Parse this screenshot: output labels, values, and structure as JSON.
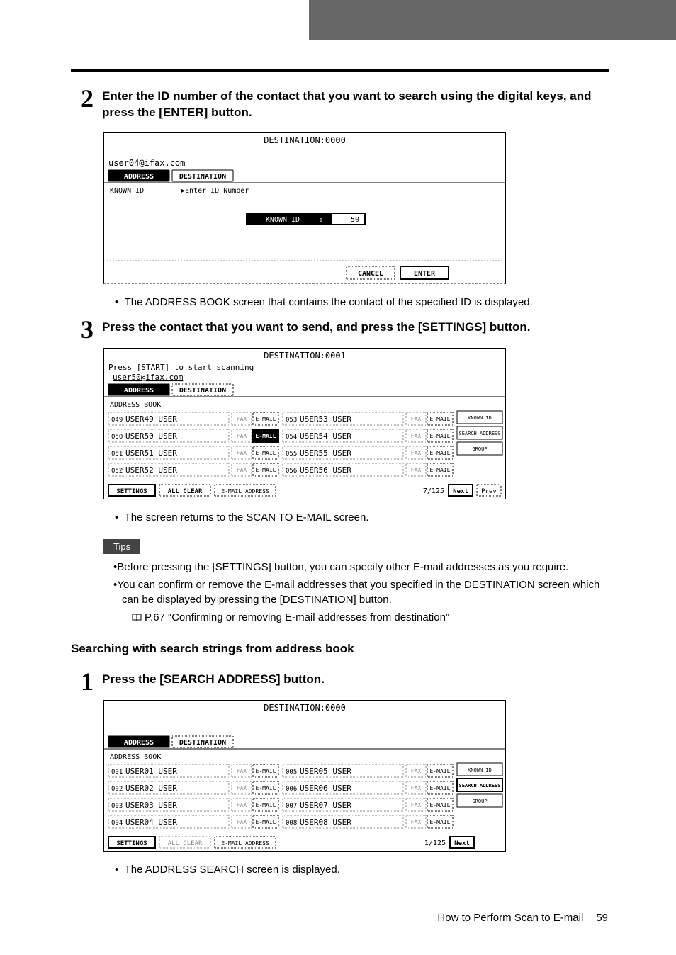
{
  "step2": {
    "title": "Enter the ID number of the contact that you want to search using the digital keys, and press the [ENTER] button.",
    "bullet": "The ADDRESS BOOK screen that contains the contact of the specified ID is displayed.",
    "screen": {
      "header": "DESTINATION:0000",
      "email": "user04@ifax.com",
      "tab_address": "ADDRESS",
      "tab_destination": "DESTINATION",
      "known_id_label": "KNOWN ID",
      "enter_hint": "▶Enter ID Number",
      "dialog_label": "KNOWN ID",
      "dialog_value": "50",
      "cancel": "CANCEL",
      "enter": "ENTER"
    }
  },
  "step3": {
    "title": "Press the contact that you want to send, and press the [SETTINGS] button.",
    "bullet": "The screen returns to the SCAN TO E-MAIL screen.",
    "screen": {
      "header": "DESTINATION:0001",
      "start_line": "Press [START] to start scanning",
      "email": "user50@ifax.com",
      "tab_address": "ADDRESS",
      "tab_destination": "DESTINATION",
      "book_label": "ADDRESS BOOK",
      "left_rows": [
        {
          "id": "049",
          "name": "USER49 USER",
          "hi": false
        },
        {
          "id": "050",
          "name": "USER50 USER",
          "hi": true
        },
        {
          "id": "051",
          "name": "USER51 USER",
          "hi": false
        },
        {
          "id": "052",
          "name": "USER52 USER",
          "hi": false
        }
      ],
      "right_rows": [
        {
          "id": "053",
          "name": "USER53 USER"
        },
        {
          "id": "054",
          "name": "USER54 USER"
        },
        {
          "id": "055",
          "name": "USER55 USER"
        },
        {
          "id": "056",
          "name": "USER56 USER"
        }
      ],
      "side_buttons": [
        "KNOWN ID",
        "SEARCH ADDRESS",
        "GROUP"
      ],
      "settings": "SETTINGS",
      "all_clear": "ALL CLEAR",
      "email_addr": "E-MAIL ADDRESS",
      "page": "7/125",
      "next": "Next",
      "prev": "Prev",
      "fax": "FAX",
      "emailb": "E-MAIL"
    }
  },
  "tips": {
    "label": "Tips",
    "items": [
      "Before pressing the [SETTINGS] button, you can specify other E-mail addresses as you require.",
      "You can confirm or remove the E-mail addresses that you specified in the DESTINATION screen which can be displayed by pressing the [DESTINATION] button."
    ],
    "ref": "P.67 “Confirming or removing E-mail addresses from destination”"
  },
  "sub_heading": "Searching with search strings from address book",
  "step1b": {
    "title": "Press the [SEARCH ADDRESS] button.",
    "bullet": "The ADDRESS SEARCH screen is displayed.",
    "screen": {
      "header": "DESTINATION:0000",
      "tab_address": "ADDRESS",
      "tab_destination": "DESTINATION",
      "book_label": "ADDRESS BOOK",
      "left_rows": [
        {
          "id": "001",
          "name": "USER01 USER"
        },
        {
          "id": "002",
          "name": "USER02 USER"
        },
        {
          "id": "003",
          "name": "USER03 USER"
        },
        {
          "id": "004",
          "name": "USER04 USER"
        }
      ],
      "right_rows": [
        {
          "id": "005",
          "name": "USER05 USER"
        },
        {
          "id": "006",
          "name": "USER06 USER"
        },
        {
          "id": "007",
          "name": "USER07 USER"
        },
        {
          "id": "008",
          "name": "USER08 USER"
        }
      ],
      "side_buttons": [
        "KNOWN ID",
        "SEARCH ADDRESS",
        "GROUP"
      ],
      "settings": "SETTINGS",
      "all_clear": "ALL CLEAR",
      "email_addr": "E-MAIL ADDRESS",
      "page": "1/125",
      "next": "Next",
      "fax": "FAX",
      "emailb": "E-MAIL"
    }
  },
  "footer": {
    "text": "How to Perform Scan to E-mail",
    "page": "59"
  },
  "colors": {
    "dashed": "#8a8a8a",
    "lcdmono": "monospace"
  }
}
